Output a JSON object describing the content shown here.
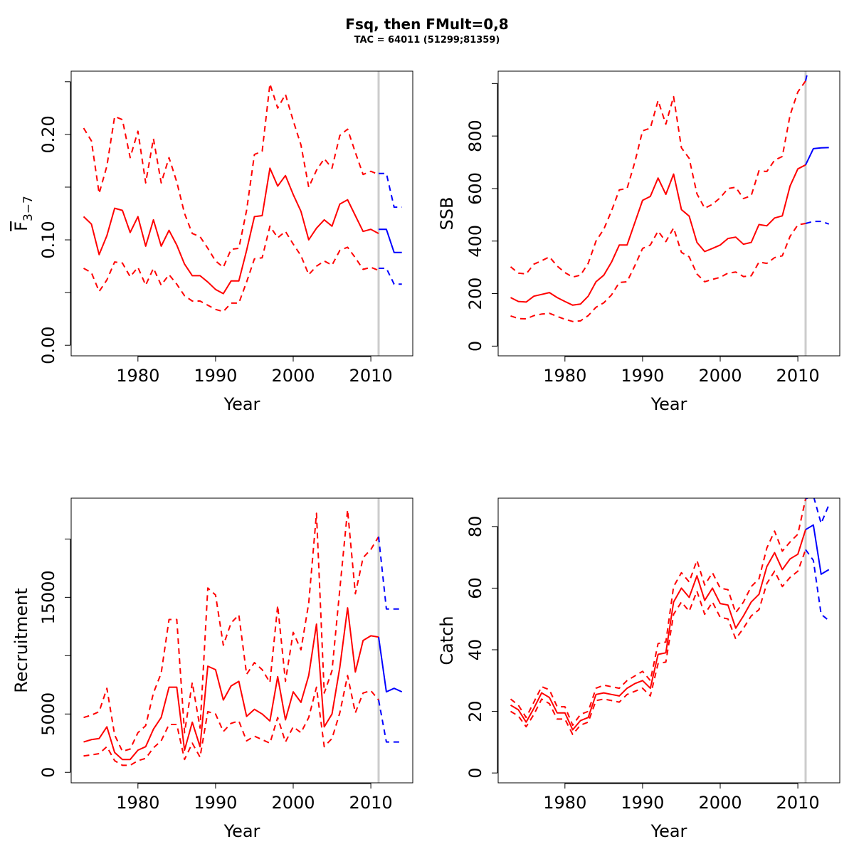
{
  "figure": {
    "title": "Fsq, then FMult=0,8",
    "subtitle": "TAC = 64011 (51299;81359)"
  },
  "colors": {
    "historic": "#ff0000",
    "forecast": "#0000ff",
    "vline": "#cccccc"
  },
  "chart_data": [
    {
      "type": "line",
      "id": "fbar",
      "ylabel_main": "F",
      "ylabel_sub": "3−7",
      "xlabel": "Year",
      "xlim": [
        1971.4,
        2015.4
      ],
      "ylim": [
        -0.01,
        0.26
      ],
      "xticks": [
        1980,
        1990,
        2000,
        2010
      ],
      "yticks": [
        0.0,
        0.05,
        0.1,
        0.15,
        0.2,
        0.25
      ],
      "ytick_labels": [
        "0.00",
        "",
        "0.10",
        "",
        "0.20",
        ""
      ],
      "vline": 2011,
      "historic": {
        "x": [
          1973,
          1974,
          1975,
          1976,
          1977,
          1978,
          1979,
          1980,
          1981,
          1982,
          1983,
          1984,
          1985,
          1986,
          1987,
          1988,
          1989,
          1990,
          1991,
          1992,
          1993,
          1994,
          1995,
          1996,
          1997,
          1998,
          1999,
          2000,
          2001,
          2002,
          2003,
          2004,
          2005,
          2006,
          2007,
          2008,
          2009,
          2010,
          2011
        ],
        "median": [
          0.122,
          0.115,
          0.086,
          0.104,
          0.13,
          0.128,
          0.107,
          0.122,
          0.094,
          0.119,
          0.094,
          0.109,
          0.095,
          0.077,
          0.066,
          0.066,
          0.06,
          0.053,
          0.049,
          0.061,
          0.061,
          0.09,
          0.122,
          0.123,
          0.168,
          0.151,
          0.161,
          0.143,
          0.127,
          0.1,
          0.111,
          0.119,
          0.113,
          0.134,
          0.138,
          0.123,
          0.108,
          0.11,
          0.106
        ],
        "upper": [
          0.206,
          0.194,
          0.144,
          0.17,
          0.217,
          0.214,
          0.178,
          0.203,
          0.154,
          0.196,
          0.154,
          0.178,
          0.155,
          0.125,
          0.106,
          0.103,
          0.092,
          0.08,
          0.074,
          0.091,
          0.092,
          0.128,
          0.181,
          0.184,
          0.248,
          0.225,
          0.238,
          0.213,
          0.19,
          0.15,
          0.166,
          0.177,
          0.168,
          0.199,
          0.205,
          0.183,
          0.162,
          0.165,
          0.162
        ],
        "lower": [
          0.073,
          0.069,
          0.051,
          0.062,
          0.079,
          0.078,
          0.065,
          0.074,
          0.057,
          0.073,
          0.057,
          0.067,
          0.058,
          0.047,
          0.042,
          0.042,
          0.038,
          0.034,
          0.032,
          0.04,
          0.04,
          0.06,
          0.082,
          0.083,
          0.113,
          0.102,
          0.108,
          0.096,
          0.085,
          0.067,
          0.075,
          0.08,
          0.076,
          0.09,
          0.093,
          0.083,
          0.072,
          0.074,
          0.071
        ]
      },
      "forecast": {
        "x": [
          2011,
          2012,
          2013,
          2014
        ],
        "median": [
          0.11,
          0.11,
          0.088,
          0.088
        ],
        "upper": [
          0.163,
          0.163,
          0.131,
          0.131
        ],
        "lower": [
          0.073,
          0.073,
          0.058,
          0.058
        ]
      }
    },
    {
      "type": "line",
      "id": "ssb",
      "ylabel": "SSB",
      "xlabel": "Year",
      "xlim": [
        1971.4,
        2015.4
      ],
      "ylim": [
        -37,
        1047
      ],
      "xticks": [
        1980,
        1990,
        2000,
        2010
      ],
      "yticks": [
        0,
        200,
        400,
        600,
        800,
        1000
      ],
      "ytick_labels": [
        "0",
        "200",
        "400",
        "600",
        "800",
        ""
      ],
      "vline": 2011,
      "historic": {
        "x": [
          1973,
          1974,
          1975,
          1976,
          1977,
          1978,
          1979,
          1980,
          1981,
          1982,
          1983,
          1984,
          1985,
          1986,
          1987,
          1988,
          1989,
          1990,
          1991,
          1992,
          1993,
          1994,
          1995,
          1996,
          1997,
          1998,
          1999,
          2000,
          2001,
          2002,
          2003,
          2004,
          2005,
          2006,
          2007,
          2008,
          2009,
          2010,
          2011
        ],
        "median": [
          185,
          170,
          168,
          190,
          197,
          204,
          185,
          170,
          156,
          160,
          190,
          245,
          270,
          320,
          385,
          385,
          470,
          555,
          570,
          640,
          578,
          655,
          520,
          495,
          395,
          360,
          372,
          385,
          410,
          415,
          388,
          395,
          463,
          458,
          488,
          496,
          610,
          675,
          690
        ],
        "upper": [
          302,
          278,
          275,
          312,
          325,
          340,
          305,
          280,
          263,
          270,
          315,
          400,
          445,
          515,
          595,
          600,
          700,
          820,
          830,
          935,
          845,
          950,
          755,
          715,
          580,
          525,
          540,
          565,
          600,
          605,
          562,
          573,
          668,
          665,
          708,
          722,
          880,
          968,
          1010
        ],
        "lower": [
          115,
          105,
          104,
          116,
          122,
          125,
          113,
          102,
          94,
          96,
          116,
          148,
          165,
          195,
          242,
          245,
          306,
          372,
          385,
          438,
          398,
          450,
          357,
          340,
          275,
          245,
          254,
          262,
          278,
          282,
          265,
          268,
          320,
          315,
          337,
          344,
          418,
          462,
          467
        ]
      },
      "forecast": {
        "x": [
          2011,
          2012,
          2013,
          2014
        ],
        "median": [
          690,
          752,
          755,
          756
        ],
        "upper": [
          1010,
          1140,
          1155,
          1160
        ],
        "lower": [
          467,
          475,
          475,
          465
        ]
      }
    },
    {
      "type": "line",
      "id": "recruitment",
      "ylabel": "Recruitment",
      "xlabel": "Year",
      "xlim": [
        1971.4,
        2015.4
      ],
      "ylim": [
        -900,
        23500
      ],
      "xticks": [
        1980,
        1990,
        2000,
        2010
      ],
      "yticks": [
        0,
        5000,
        10000,
        15000,
        20000
      ],
      "ytick_labels": [
        "0",
        "5000",
        "",
        "15000",
        ""
      ],
      "vline": 2011,
      "historic": {
        "x": [
          1973,
          1974,
          1975,
          1976,
          1977,
          1978,
          1979,
          1980,
          1981,
          1982,
          1983,
          1984,
          1985,
          1986,
          1987,
          1988,
          1989,
          1990,
          1991,
          1992,
          1993,
          1994,
          1995,
          1996,
          1997,
          1998,
          1999,
          2000,
          2001,
          2002,
          2003,
          2004,
          2005,
          2006,
          2007,
          2008,
          2009,
          2010,
          2011
        ],
        "median": [
          2600,
          2800,
          2900,
          3900,
          1700,
          1100,
          1100,
          1900,
          2200,
          3700,
          4700,
          7300,
          7300,
          1900,
          4300,
          2200,
          9100,
          8800,
          6200,
          7400,
          7800,
          4800,
          5400,
          5000,
          4400,
          8200,
          4500,
          6900,
          6000,
          8300,
          12700,
          3900,
          5000,
          9000,
          14100,
          8600,
          11300,
          11700,
          11600
        ],
        "upper": [
          4700,
          4900,
          5200,
          7200,
          3200,
          1800,
          2000,
          3400,
          4000,
          6800,
          8500,
          13100,
          13100,
          3400,
          7700,
          3800,
          15800,
          15200,
          10900,
          12800,
          13500,
          8400,
          9400,
          8800,
          7700,
          14300,
          7800,
          12000,
          10500,
          14500,
          22200,
          6800,
          8700,
          15700,
          22500,
          15300,
          18400,
          19100,
          20200
        ],
        "lower": [
          1400,
          1500,
          1600,
          2200,
          1000,
          600,
          600,
          1000,
          1200,
          2100,
          2700,
          4100,
          4100,
          1100,
          2500,
          1300,
          5200,
          5000,
          3500,
          4200,
          4400,
          2700,
          3100,
          2800,
          2500,
          4700,
          2600,
          3900,
          3400,
          4700,
          7300,
          2200,
          2900,
          5100,
          8300,
          5100,
          6800,
          7000,
          6200
        ]
      },
      "forecast": {
        "x": [
          2011,
          2012,
          2013,
          2014
        ],
        "median": [
          11600,
          6900,
          7200,
          6900
        ],
        "upper": [
          20200,
          14000,
          14000,
          14000
        ],
        "lower": [
          6200,
          2600,
          2600,
          2600
        ]
      }
    },
    {
      "type": "line",
      "id": "catch",
      "ylabel": "Catch",
      "xlabel": "Year",
      "xlim": [
        1971.4,
        2015.4
      ],
      "ylim": [
        -3.2,
        89.2
      ],
      "xticks": [
        1980,
        1990,
        2000,
        2010
      ],
      "yticks": [
        0,
        20,
        40,
        60,
        80
      ],
      "ytick_labels": [
        "0",
        "20",
        "40",
        "60",
        "80"
      ],
      "vline": 2011,
      "historic": {
        "x": [
          1973,
          1974,
          1975,
          1976,
          1977,
          1978,
          1979,
          1980,
          1981,
          1982,
          1983,
          1984,
          1985,
          1986,
          1987,
          1988,
          1989,
          1990,
          1991,
          1992,
          1993,
          1994,
          1995,
          1996,
          1997,
          1998,
          1999,
          2000,
          2001,
          2002,
          2003,
          2004,
          2005,
          2006,
          2007,
          2008,
          2009,
          2010,
          2011
        ],
        "median": [
          22,
          20.5,
          16.5,
          21,
          26,
          24.5,
          19.5,
          19.5,
          14,
          17,
          18,
          25.5,
          26,
          25.5,
          25,
          27.5,
          29,
          30,
          27.5,
          38.5,
          39,
          55.5,
          60,
          57,
          64,
          56,
          60,
          55,
          54.5,
          47,
          51,
          55.5,
          58,
          67,
          71.5,
          66,
          69.5,
          71,
          79
        ],
        "upper": [
          24,
          22,
          18,
          23,
          28,
          27,
          21.5,
          21.5,
          15.5,
          19,
          20,
          27.5,
          28.5,
          28,
          27.5,
          30,
          31.5,
          33,
          30,
          42,
          42.5,
          60.5,
          65,
          62,
          69,
          61,
          65,
          60,
          59.5,
          52,
          55.5,
          60.5,
          63,
          73,
          78.5,
          72,
          75,
          77.5,
          89
        ],
        "lower": [
          20,
          18.5,
          15,
          19,
          24,
          22.5,
          17.5,
          17.5,
          12.5,
          15.5,
          16.5,
          23.5,
          24,
          23.5,
          23,
          25.5,
          26.5,
          27.5,
          25,
          35.5,
          36,
          51.5,
          55.5,
          52.5,
          59,
          51.5,
          55.5,
          50.5,
          50,
          43.5,
          47,
          51,
          53,
          61.5,
          65.5,
          60.5,
          63.5,
          65.5,
          72.5
        ]
      },
      "forecast": {
        "x": [
          2011,
          2012,
          2013,
          2014
        ],
        "median": [
          79,
          80.5,
          64.5,
          66
        ],
        "upper": [
          89,
          90,
          81,
          87
        ],
        "lower": [
          72.5,
          69,
          51.5,
          49.5
        ]
      }
    }
  ]
}
